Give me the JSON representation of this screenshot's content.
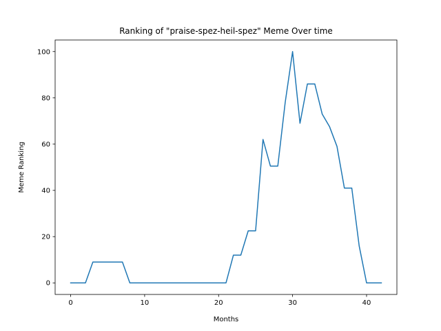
{
  "chart_data": {
    "type": "line",
    "title": "Ranking of \"praise-spez-heil-spez\" Meme Over time",
    "xlabel": "Months",
    "ylabel": "Meme Ranking",
    "xlim": [
      -2.1,
      44.1
    ],
    "ylim": [
      -5,
      105
    ],
    "xticks": [
      0,
      10,
      20,
      30,
      40
    ],
    "yticks": [
      0,
      20,
      40,
      60,
      80,
      100
    ],
    "grid": false,
    "series": [
      {
        "color": "#1f77b4",
        "x": [
          0,
          1,
          2,
          3,
          4,
          5,
          6,
          7,
          8,
          9,
          10,
          11,
          12,
          13,
          14,
          15,
          16,
          17,
          18,
          19,
          20,
          21,
          22,
          23,
          24,
          25,
          26,
          27,
          28,
          29,
          30,
          31,
          32,
          33,
          34,
          35,
          36,
          37,
          38,
          39,
          40,
          41,
          42
        ],
        "values": [
          0,
          0,
          0,
          9,
          9,
          9,
          9,
          9,
          0,
          0,
          0,
          0,
          0,
          0,
          0,
          0,
          0,
          0,
          0,
          0,
          0,
          0,
          12,
          12,
          22.5,
          22.5,
          62,
          50.5,
          50.5,
          78,
          100,
          69,
          86,
          86,
          73,
          67.5,
          59,
          41,
          41,
          16,
          0,
          0,
          0
        ]
      }
    ]
  }
}
